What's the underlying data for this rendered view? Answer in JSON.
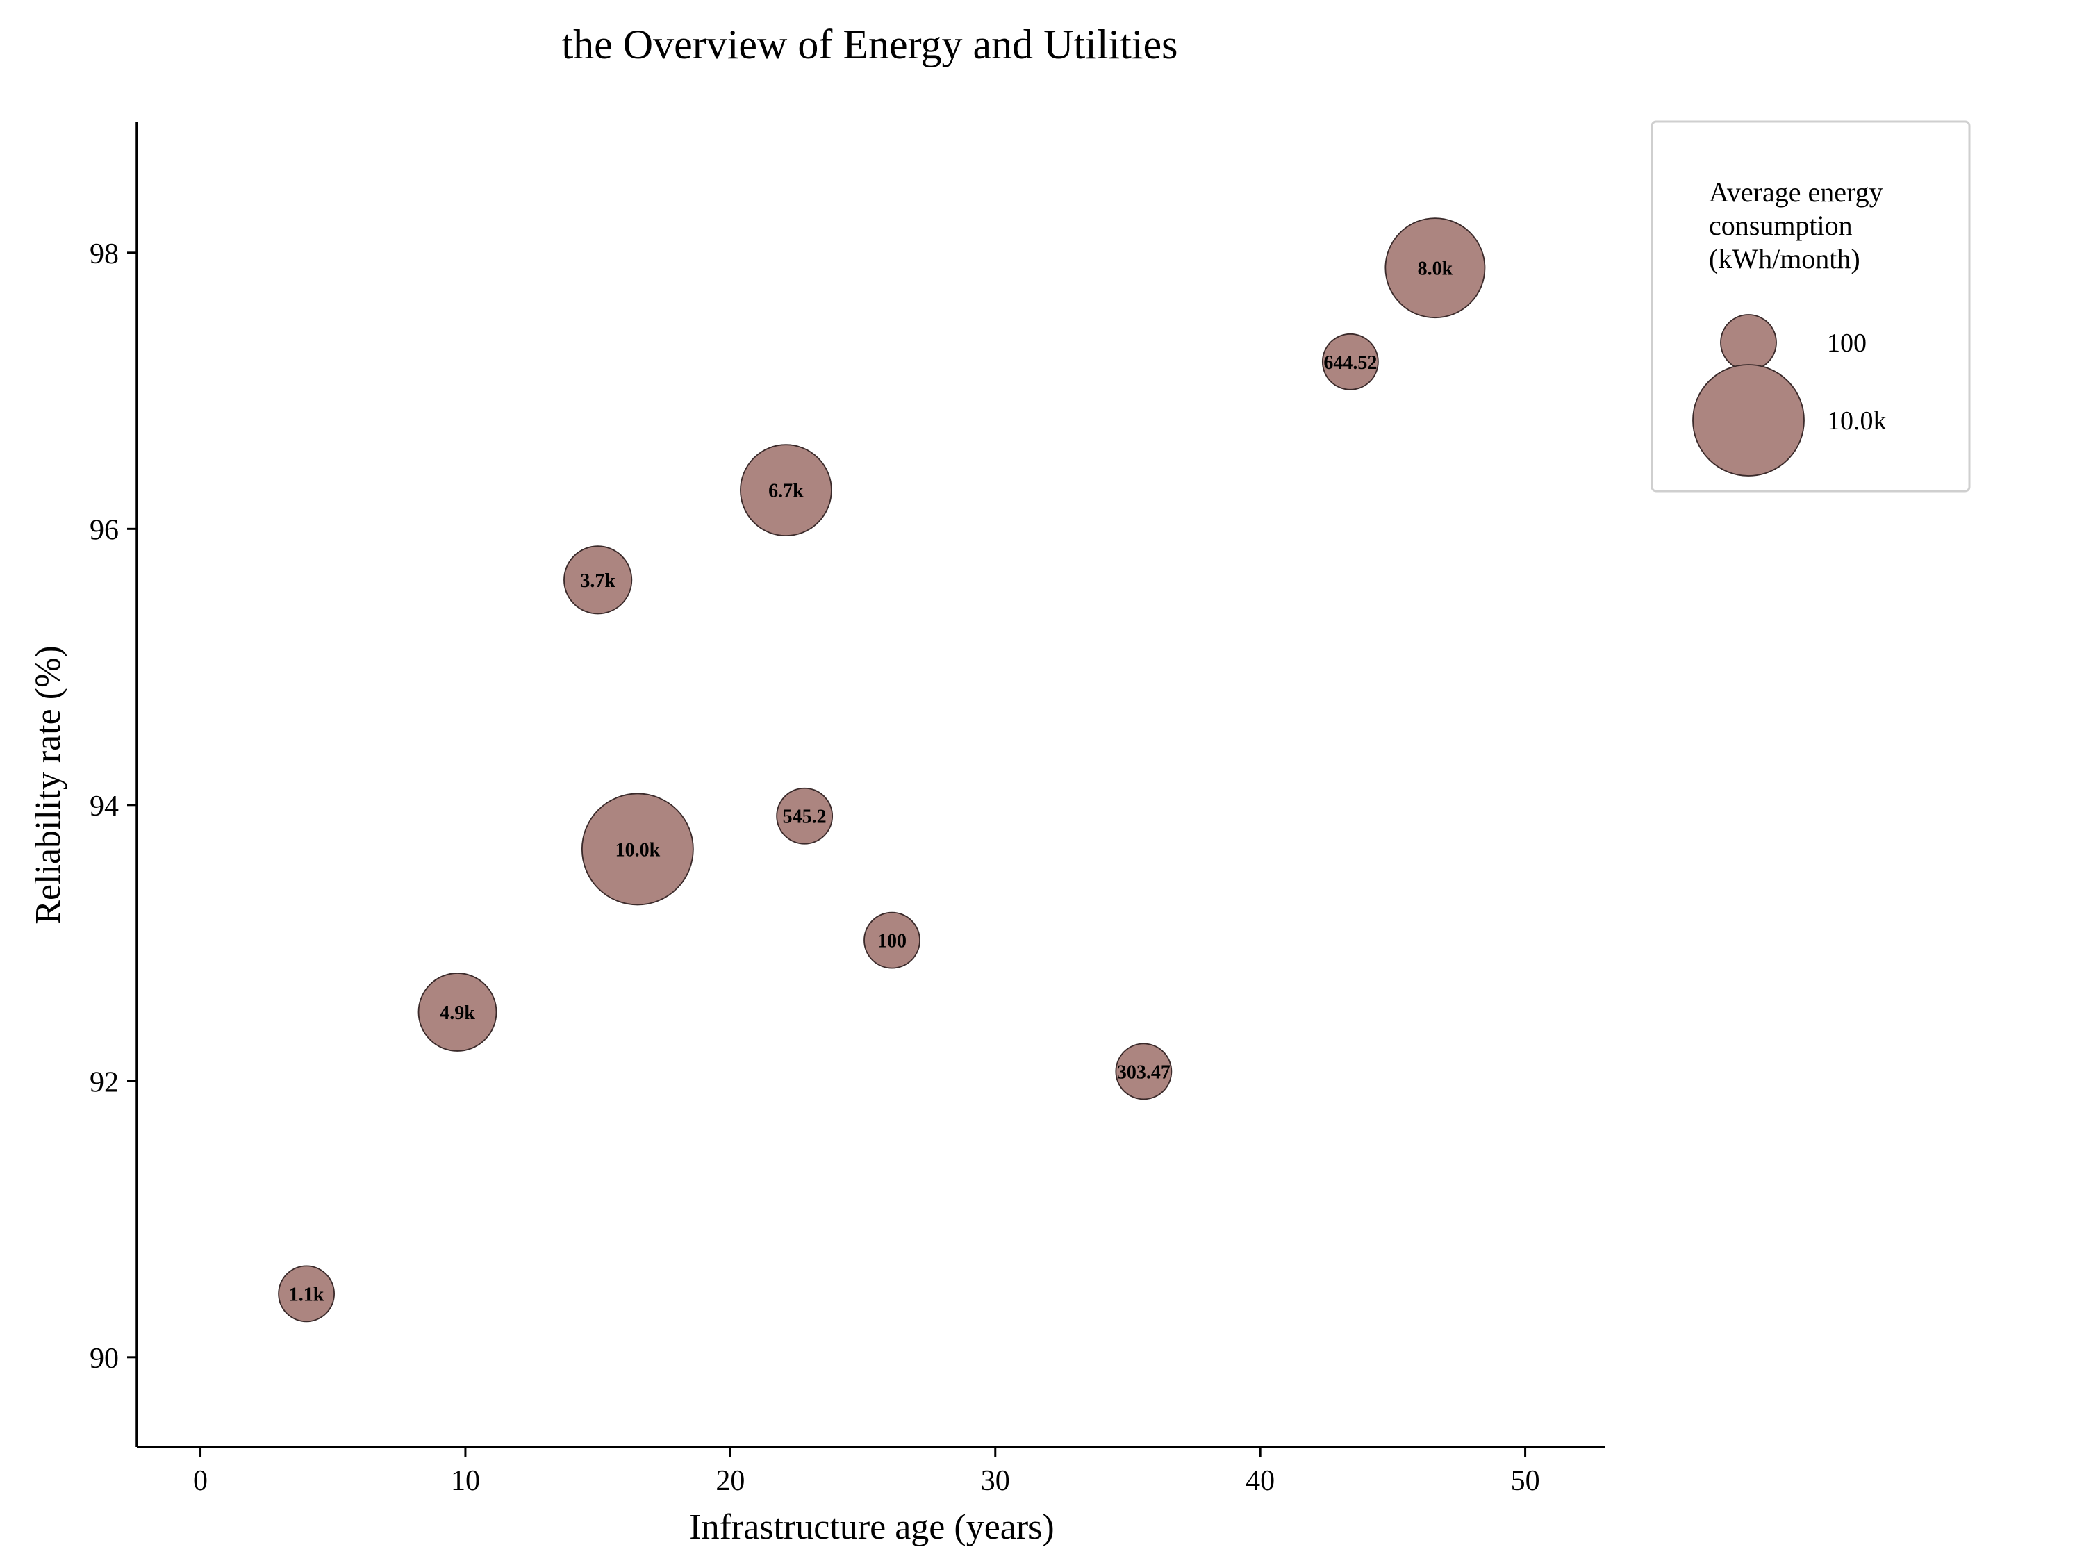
{
  "chart_data": {
    "type": "bubble",
    "title": "the Overview of Energy and Utilities",
    "xlabel": "Infrastructure age (years)",
    "ylabel": "Reliability rate (%)",
    "xlim": [
      -2.4,
      53
    ],
    "ylim": [
      89.35,
      98.95
    ],
    "xticks": [
      0,
      10,
      20,
      30,
      40,
      50
    ],
    "yticks": [
      90,
      92,
      94,
      96,
      98
    ],
    "grid": false,
    "bubble_color": "#ac8580",
    "edge_color": "#3a2a2a",
    "legend": {
      "title": "Average energy consumption (kWh/month)",
      "title_lines": [
        "Average energy",
        "consumption",
        "(kWh/month)"
      ],
      "placement": "outside-right-top",
      "entries": [
        {
          "label": "100",
          "value": 100
        },
        {
          "label": "10.0k",
          "value": 10000
        }
      ]
    },
    "points": [
      {
        "x": 4.0,
        "y": 90.46,
        "size": 1100,
        "label": "1.1k"
      },
      {
        "x": 9.7,
        "y": 92.5,
        "size": 4900,
        "label": "4.9k"
      },
      {
        "x": 15.0,
        "y": 95.63,
        "size": 3700,
        "label": "3.7k"
      },
      {
        "x": 16.5,
        "y": 93.68,
        "size": 10000,
        "label": "10.0k"
      },
      {
        "x": 22.1,
        "y": 96.28,
        "size": 6700,
        "label": "6.7k"
      },
      {
        "x": 22.8,
        "y": 93.92,
        "size": 545.2,
        "label": "545.2"
      },
      {
        "x": 26.1,
        "y": 93.02,
        "size": 100,
        "label": "100"
      },
      {
        "x": 35.6,
        "y": 92.07,
        "size": 303.47,
        "label": "303.47"
      },
      {
        "x": 43.4,
        "y": 97.21,
        "size": 644.52,
        "label": "644.52"
      },
      {
        "x": 46.6,
        "y": 97.89,
        "size": 8000,
        "label": "8.0k"
      }
    ]
  }
}
